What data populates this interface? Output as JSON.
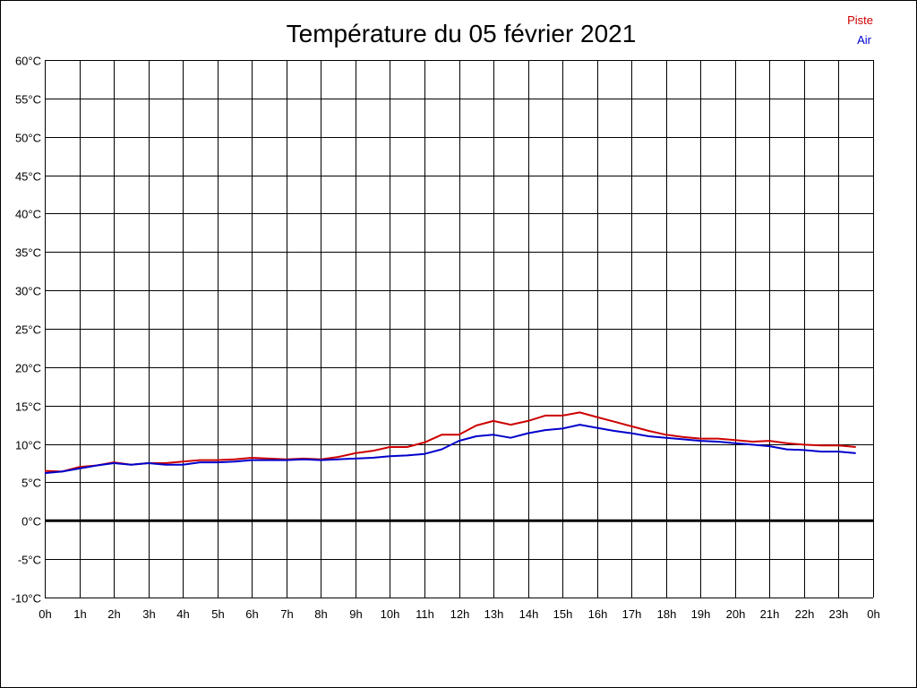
{
  "chart_data": {
    "type": "line",
    "title": "Température du 05 février 2021",
    "xlabel": "",
    "ylabel": "",
    "ylim": [
      -10,
      60
    ],
    "xlim": [
      0,
      24
    ],
    "grid": true,
    "legend_position": "top-right",
    "y_ticks": [
      {
        "value": 60,
        "label": "60°C"
      },
      {
        "value": 55,
        "label": "55°C"
      },
      {
        "value": 50,
        "label": "50°C"
      },
      {
        "value": 45,
        "label": "45°C"
      },
      {
        "value": 40,
        "label": "40°C"
      },
      {
        "value": 35,
        "label": "35°C"
      },
      {
        "value": 30,
        "label": "30°C"
      },
      {
        "value": 25,
        "label": "25°C"
      },
      {
        "value": 20,
        "label": "20°C"
      },
      {
        "value": 15,
        "label": "15°C"
      },
      {
        "value": 10,
        "label": "10°C"
      },
      {
        "value": 5,
        "label": "5°C"
      },
      {
        "value": 0,
        "label": "0°C"
      },
      {
        "value": -5,
        "label": "-5°C"
      },
      {
        "value": -10,
        "label": "-10°C"
      }
    ],
    "x_ticks": [
      {
        "value": 0,
        "label": "0h"
      },
      {
        "value": 1,
        "label": "1h"
      },
      {
        "value": 2,
        "label": "2h"
      },
      {
        "value": 3,
        "label": "3h"
      },
      {
        "value": 4,
        "label": "4h"
      },
      {
        "value": 5,
        "label": "5h"
      },
      {
        "value": 6,
        "label": "6h"
      },
      {
        "value": 7,
        "label": "7h"
      },
      {
        "value": 8,
        "label": "8h"
      },
      {
        "value": 9,
        "label": "9h"
      },
      {
        "value": 10,
        "label": "10h"
      },
      {
        "value": 11,
        "label": "11h"
      },
      {
        "value": 12,
        "label": "12h"
      },
      {
        "value": 13,
        "label": "13h"
      },
      {
        "value": 14,
        "label": "14h"
      },
      {
        "value": 15,
        "label": "15h"
      },
      {
        "value": 16,
        "label": "16h"
      },
      {
        "value": 17,
        "label": "17h"
      },
      {
        "value": 18,
        "label": "18h"
      },
      {
        "value": 19,
        "label": "19h"
      },
      {
        "value": 20,
        "label": "20h"
      },
      {
        "value": 21,
        "label": "21h"
      },
      {
        "value": 22,
        "label": "22h"
      },
      {
        "value": 23,
        "label": "23h"
      },
      {
        "value": 24,
        "label": "0h"
      }
    ],
    "x": [
      0,
      0.5,
      1,
      1.5,
      2,
      2.5,
      3,
      3.5,
      4,
      4.5,
      5,
      5.5,
      6,
      6.5,
      7,
      7.5,
      8,
      8.5,
      9,
      9.5,
      10,
      10.5,
      11,
      11.5,
      12,
      12.5,
      13,
      13.5,
      14,
      14.5,
      15,
      15.5,
      16,
      16.5,
      17,
      17.5,
      18,
      18.5,
      19,
      19.5,
      20,
      20.5,
      21,
      21.5,
      22,
      22.5,
      23,
      23.5
    ],
    "series": [
      {
        "name": "Piste",
        "color": "#cc0000",
        "values": [
          6.5,
          6.4,
          7.0,
          7.2,
          7.6,
          7.3,
          7.5,
          7.5,
          7.7,
          7.9,
          7.9,
          8.0,
          8.2,
          8.1,
          8.0,
          8.1,
          8.0,
          8.3,
          8.8,
          9.1,
          9.6,
          9.6,
          10.2,
          11.2,
          11.2,
          12.4,
          13.0,
          12.5,
          13.0,
          13.7,
          13.7,
          14.1,
          13.5,
          12.9,
          12.3,
          11.7,
          11.2,
          10.9,
          10.7,
          10.7,
          10.5,
          10.3,
          10.4,
          10.1,
          9.9,
          9.8,
          9.8,
          9.6
        ]
      },
      {
        "name": "Air",
        "color": "#0000cc",
        "values": [
          6.2,
          6.4,
          6.8,
          7.2,
          7.5,
          7.3,
          7.5,
          7.3,
          7.3,
          7.6,
          7.6,
          7.7,
          7.9,
          7.9,
          7.9,
          8.0,
          7.9,
          8.0,
          8.1,
          8.2,
          8.4,
          8.5,
          8.7,
          9.3,
          10.4,
          11.0,
          11.2,
          10.8,
          11.4,
          11.8,
          12.0,
          12.5,
          12.1,
          11.7,
          11.4,
          11.0,
          10.8,
          10.6,
          10.4,
          10.3,
          10.1,
          9.9,
          9.7,
          9.3,
          9.2,
          9.0,
          9.0,
          8.8
        ]
      }
    ],
    "zero_line": true
  }
}
